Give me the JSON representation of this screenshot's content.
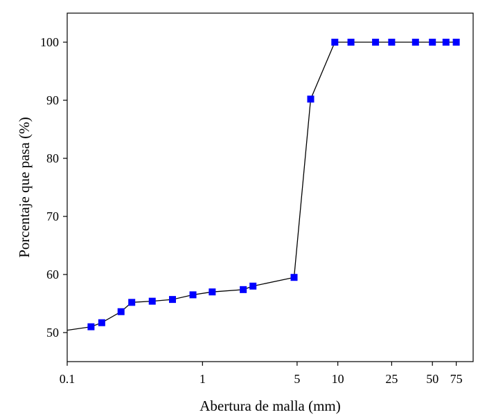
{
  "chart_data": {
    "type": "line",
    "title": "",
    "xlabel": "Abertura de malla (mm)",
    "ylabel": "Porcentaje que pasa (%)",
    "x_scale": "log",
    "xlim": [
      0.1,
      100
    ],
    "ylim": [
      45,
      105
    ],
    "x_ticks": [
      {
        "value": 0.1,
        "label": "0.1"
      },
      {
        "value": 1,
        "label": "1"
      },
      {
        "value": 5,
        "label": "5"
      },
      {
        "value": 10,
        "label": "10"
      },
      {
        "value": 25,
        "label": "25"
      },
      {
        "value": 50,
        "label": "50"
      },
      {
        "value": 75,
        "label": "75"
      }
    ],
    "y_ticks": [
      {
        "value": 50,
        "label": "50"
      },
      {
        "value": 60,
        "label": "60"
      },
      {
        "value": 70,
        "label": "70"
      },
      {
        "value": 80,
        "label": "80"
      },
      {
        "value": 90,
        "label": "90"
      },
      {
        "value": 100,
        "label": "100"
      }
    ],
    "grid": false,
    "legend": "none",
    "series": [
      {
        "color": "#0000ff",
        "line_color": "#000000",
        "marker": "square",
        "points": [
          {
            "x": 0.1,
            "y": 50.4,
            "marker": false
          },
          {
            "x": 0.15,
            "y": 51.0
          },
          {
            "x": 0.18,
            "y": 51.7
          },
          {
            "x": 0.25,
            "y": 53.6
          },
          {
            "x": 0.3,
            "y": 55.2
          },
          {
            "x": 0.425,
            "y": 55.4
          },
          {
            "x": 0.6,
            "y": 55.7
          },
          {
            "x": 0.85,
            "y": 56.5
          },
          {
            "x": 1.18,
            "y": 57.0
          },
          {
            "x": 2.0,
            "y": 57.4
          },
          {
            "x": 2.36,
            "y": 58.0
          },
          {
            "x": 4.75,
            "y": 59.5
          },
          {
            "x": 6.3,
            "y": 90.2
          },
          {
            "x": 9.5,
            "y": 100
          },
          {
            "x": 12.5,
            "y": 100
          },
          {
            "x": 19.0,
            "y": 100
          },
          {
            "x": 25.0,
            "y": 100
          },
          {
            "x": 37.5,
            "y": 100
          },
          {
            "x": 50.0,
            "y": 100
          },
          {
            "x": 63.0,
            "y": 100
          },
          {
            "x": 75.0,
            "y": 100
          }
        ]
      }
    ]
  }
}
